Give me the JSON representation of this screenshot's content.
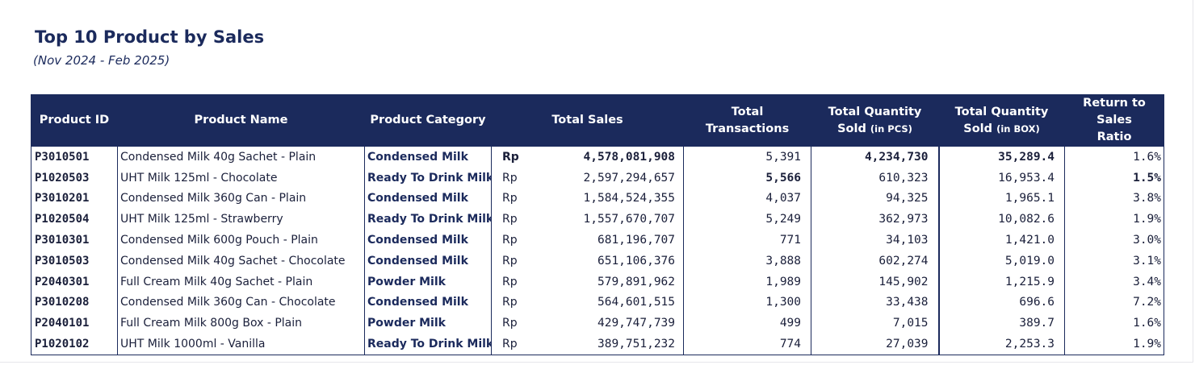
{
  "header": {
    "title": "Top 10 Product by Sales",
    "subtitle": "(Nov 2024 - Feb 2025)"
  },
  "table": {
    "columns": {
      "product_id": "Product ID",
      "product_name": "Product Name",
      "product_category": "Product Category",
      "total_sales": "Total Sales",
      "total_transactions": "Total Transactions",
      "qty_pcs_line1": "Total Quantity",
      "qty_pcs_line2": "Sold",
      "qty_pcs_unit": "(in PCS)",
      "qty_box_line1": "Total Quantity",
      "qty_box_line2": "Sold",
      "qty_box_unit": "(in BOX)",
      "ratio_line1": "Return to Sales",
      "ratio_line2": "Ratio"
    },
    "currency": "Rp",
    "rows": [
      {
        "id": "P3010501",
        "name": "Condensed Milk 40g Sachet - Plain",
        "category": "Condensed Milk",
        "sales": "4,578,081,908",
        "transactions": "5,391",
        "qty_pcs": "4,234,730",
        "qty_box": "35,289.4",
        "ratio": "1.6%"
      },
      {
        "id": "P1020503",
        "name": "UHT Milk 125ml - Chocolate",
        "category": "Ready To Drink Milk",
        "sales": "2,597,294,657",
        "transactions": "5,566",
        "qty_pcs": "610,323",
        "qty_box": "16,953.4",
        "ratio": "1.5%"
      },
      {
        "id": "P3010201",
        "name": "Condensed Milk 360g Can - Plain",
        "category": "Condensed Milk",
        "sales": "1,584,524,355",
        "transactions": "4,037",
        "qty_pcs": "94,325",
        "qty_box": "1,965.1",
        "ratio": "3.8%"
      },
      {
        "id": "P1020504",
        "name": "UHT Milk 125ml - Strawberry",
        "category": "Ready To Drink Milk",
        "sales": "1,557,670,707",
        "transactions": "5,249",
        "qty_pcs": "362,973",
        "qty_box": "10,082.6",
        "ratio": "1.9%"
      },
      {
        "id": "P3010301",
        "name": "Condensed Milk 600g Pouch - Plain",
        "category": "Condensed Milk",
        "sales": "681,196,707",
        "transactions": "771",
        "qty_pcs": "34,103",
        "qty_box": "1,421.0",
        "ratio": "3.0%"
      },
      {
        "id": "P3010503",
        "name": "Condensed Milk 40g Sachet - Chocolate",
        "category": "Condensed Milk",
        "sales": "651,106,376",
        "transactions": "3,888",
        "qty_pcs": "602,274",
        "qty_box": "5,019.0",
        "ratio": "3.1%"
      },
      {
        "id": "P2040301",
        "name": "Full Cream Milk 40g Sachet - Plain",
        "category": "Powder Milk",
        "sales": "579,891,962",
        "transactions": "1,989",
        "qty_pcs": "145,902",
        "qty_box": "1,215.9",
        "ratio": "3.4%"
      },
      {
        "id": "P3010208",
        "name": "Condensed Milk 360g Can - Chocolate",
        "category": "Condensed Milk",
        "sales": "564,601,515",
        "transactions": "1,300",
        "qty_pcs": "33,438",
        "qty_box": "696.6",
        "ratio": "7.2%"
      },
      {
        "id": "P2040101",
        "name": "Full Cream Milk 800g Box - Plain",
        "category": "Powder Milk",
        "sales": "429,747,739",
        "transactions": "499",
        "qty_pcs": "7,015",
        "qty_box": "389.7",
        "ratio": "1.6%"
      },
      {
        "id": "P1020102",
        "name": "UHT Milk 1000ml - Vanilla",
        "category": "Ready To Drink Milk",
        "sales": "389,751,232",
        "transactions": "774",
        "qty_pcs": "27,039",
        "qty_box": "2,253.3",
        "ratio": "1.9%"
      }
    ],
    "highlight": {
      "sales_max_row": 0,
      "transactions_max_row": 1,
      "qty_pcs_max_row": 0,
      "qty_box_max_row": 0,
      "ratio_min_row": 1
    }
  },
  "colors": {
    "header_bg": "#1b2a5c",
    "header_text": "#ffffff",
    "body_text": "#1a1f3a"
  }
}
